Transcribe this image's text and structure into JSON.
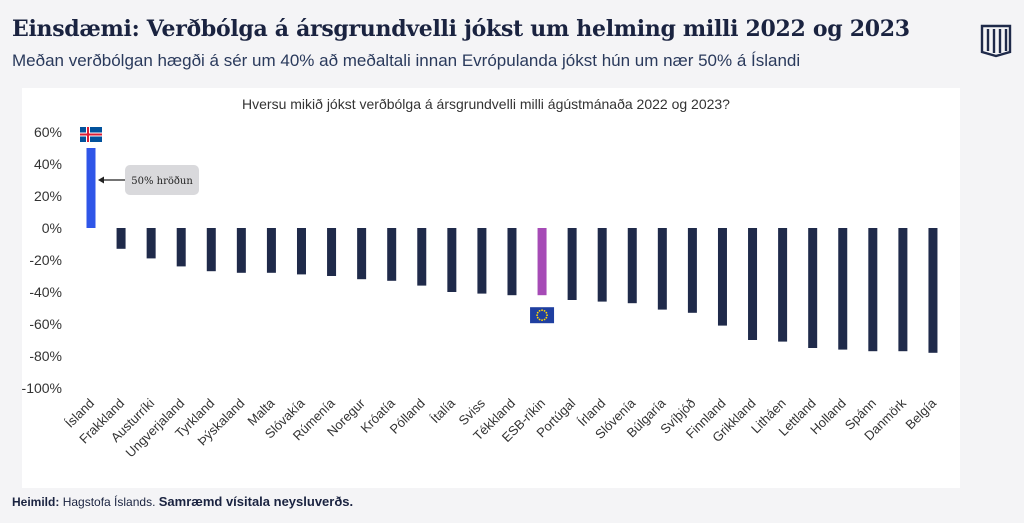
{
  "header": {
    "title": "Einsdæmi: Verðbólga á ársgrundvelli jókst um helming milli 2022 og 2023",
    "subtitle": "Meðan verðbólgan hægði á sér um 40% að meðaltali innan Evrópulanda jókst hún um nær 50% á Íslandi"
  },
  "logo": {
    "icon": "columns-logo-icon",
    "color": "#1f2a4a"
  },
  "footer": {
    "source_label": "Heimild:",
    "source_text": "Hagstofa Íslands.",
    "source_bold": "Samræmd vísitala neysluverðs."
  },
  "chart_data": {
    "type": "bar",
    "title": "Hversu mikið jókst verðbólga á ársgrundvelli milli ágústmánaða 2022 og 2023?",
    "xlabel": "",
    "ylabel": "",
    "ylim": [
      -100,
      60
    ],
    "yticks": [
      "60%",
      "40%",
      "20%",
      "0%",
      "-20%",
      "-40%",
      "-60%",
      "-80%",
      "-100%"
    ],
    "ytick_values": [
      60,
      40,
      20,
      0,
      -20,
      -40,
      -60,
      -80,
      -100
    ],
    "grid": false,
    "categories": [
      "Ísland",
      "Frakkland",
      "Austurríki",
      "Ungverjaland",
      "Tyrkland",
      "Þýskaland",
      "Malta",
      "Slóvakía",
      "Rúmenía",
      "Noregur",
      "Króatía",
      "Pólland",
      "Ítalía",
      "Sviss",
      "Tékkland",
      "ESB-ríkin",
      "Portúgal",
      "Írland",
      "Slóvenía",
      "Búlgaría",
      "Svíþjóð",
      "Finnland",
      "Grikkland",
      "Litháen",
      "Lettland",
      "Holland",
      "Spánn",
      "Danmörk",
      "Belgía"
    ],
    "values": [
      50,
      -13,
      -19,
      -24,
      -27,
      -28,
      -28,
      -29,
      -30,
      -32,
      -33,
      -36,
      -40,
      -41,
      -42,
      -42,
      -45,
      -46,
      -47,
      -51,
      -53,
      -61,
      -70,
      -71,
      -75,
      -76,
      -77,
      -77,
      -78
    ],
    "colors": {
      "default": "#1f2a4a",
      "highlight": "#2f56e8",
      "eu": "#a64bb6"
    },
    "highlight_category": "Ísland",
    "eu_category": "ESB-ríkin",
    "annotation": {
      "text": "50% hröðun",
      "category": "Ísland"
    },
    "flags": {
      "iceland": "iceland-flag-icon",
      "eu": "eu-flag-icon"
    }
  }
}
